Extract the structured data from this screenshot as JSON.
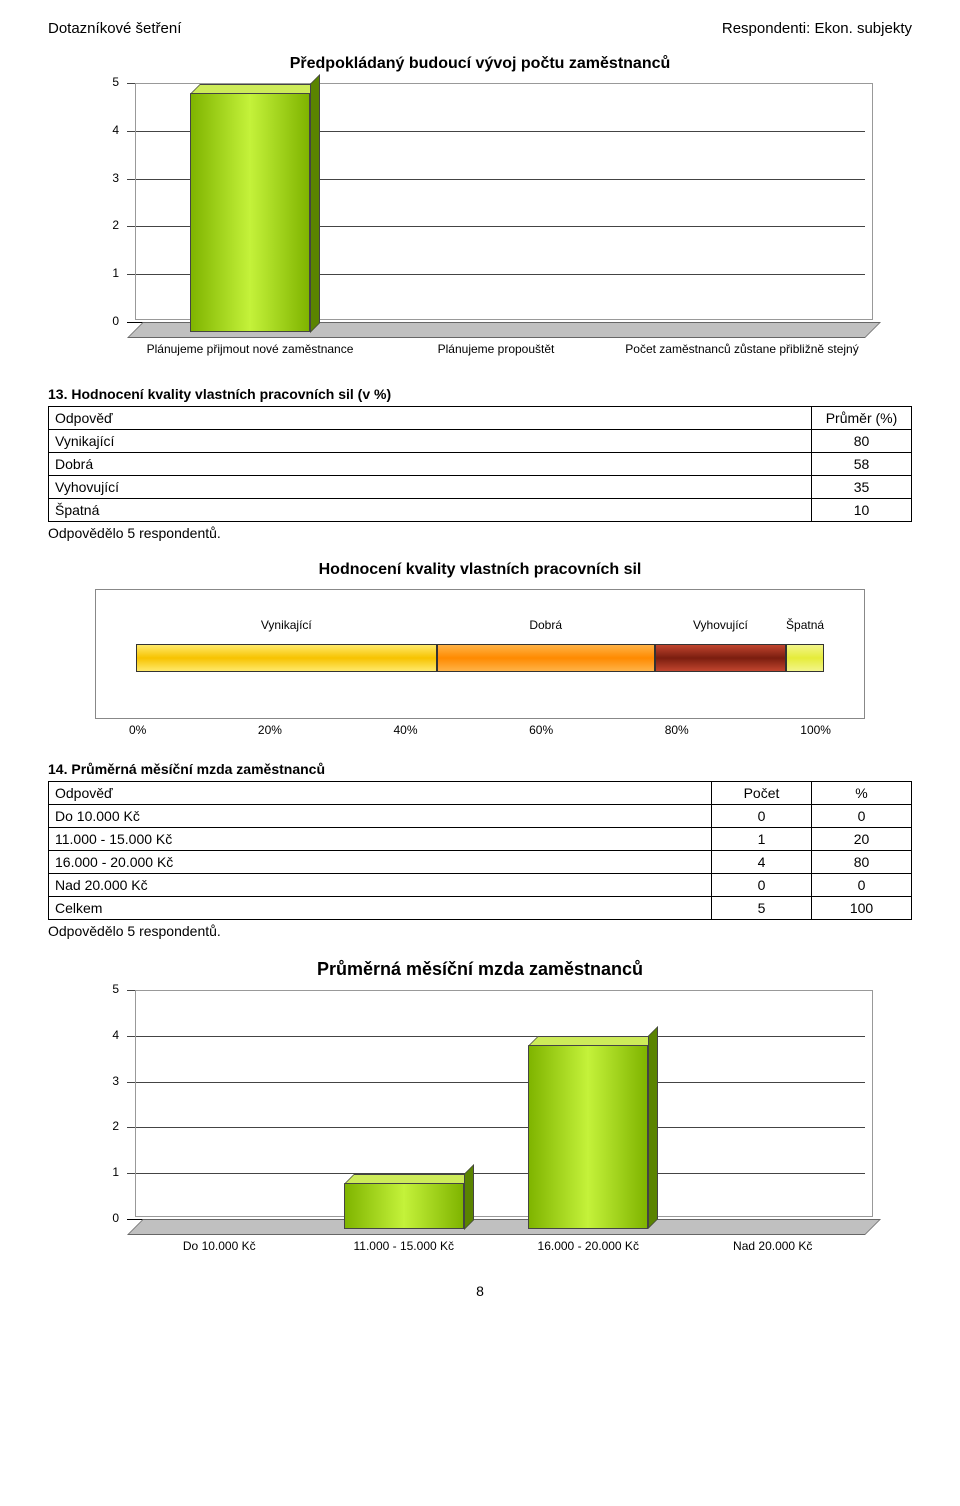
{
  "header": {
    "left": "Dotazníkové šetření",
    "right": "Respondenti: Ekon. subjekty"
  },
  "chart1": {
    "title": "Předpokládaný budoucí vývoj počtu zaměstnanců",
    "type": "bar",
    "ymax": 5,
    "ytick_step": 1,
    "categories": [
      "Plánujeme přijmout nové zaměstnance",
      "Plánujeme propouštět",
      "Počet zaměstnanců zůstane přibližně stejný"
    ],
    "values": [
      5,
      0,
      0
    ],
    "bar_fill": "linear-gradient(to right,#7fb400,#c4f23a,#7fb400)",
    "bar_top": "#cdeb5a",
    "bar_side": "#5a8400",
    "floor_color": "#c0c0c0",
    "text_color": "#000000"
  },
  "table1": {
    "title": "13. Hodnocení kvality vlastních pracovních sil (v %)",
    "col1": "Odpověď",
    "col2": "Průměr (%)",
    "rows": [
      {
        "label": "Vynikající",
        "val": "80"
      },
      {
        "label": "Dobrá",
        "val": "58"
      },
      {
        "label": "Vyhovující",
        "val": "35"
      },
      {
        "label": "Špatná",
        "val": "10"
      }
    ],
    "note": "Odpovědělo 5 respondentů."
  },
  "chart2": {
    "title": "Hodnocení kvality vlastních pracovních sil",
    "type": "stacked-bar-100",
    "segments": [
      {
        "label": "Vynikající",
        "pct": 43.7,
        "fill": "linear-gradient(to bottom,#ffe96a,#f7c300,#ffe96a)"
      },
      {
        "label": "Dobrá",
        "pct": 31.7,
        "fill": "linear-gradient(to bottom,#ffb347,#ff8a00,#ffb347)"
      },
      {
        "label": "Vyhovující",
        "pct": 19.1,
        "fill": "linear-gradient(to bottom,#c1452e,#7a1d0f,#c1452e)"
      },
      {
        "label": "Špatná",
        "pct": 5.5,
        "fill": "linear-gradient(to bottom,#f2f58a,#e6ec3a,#f2f58a)"
      }
    ],
    "xticks": [
      "0%",
      "20%",
      "40%",
      "60%",
      "80%",
      "100%"
    ]
  },
  "table2": {
    "title": "14. Průměrná měsíční mzda zaměstnanců",
    "col1": "Odpověď",
    "col2": "Počet",
    "col3": "%",
    "rows": [
      {
        "label": "Do 10.000 Kč",
        "v1": "0",
        "v2": "0"
      },
      {
        "label": "11.000 - 15.000 Kč",
        "v1": "1",
        "v2": "20"
      },
      {
        "label": "16.000 - 20.000 Kč",
        "v1": "4",
        "v2": "80"
      },
      {
        "label": "Nad 20.000 Kč",
        "v1": "0",
        "v2": "0"
      },
      {
        "label": "Celkem",
        "v1": "5",
        "v2": "100"
      }
    ],
    "note": "Odpovědělo 5 respondentů."
  },
  "chart3": {
    "title": "Průměrná měsíční mzda zaměstnanců",
    "type": "bar",
    "ymax": 5,
    "ytick_step": 1,
    "categories": [
      "Do 10.000 Kč",
      "11.000 - 15.000 Kč",
      "16.000 - 20.000 Kč",
      "Nad 20.000 Kč"
    ],
    "values": [
      0,
      1,
      4,
      0
    ],
    "bar_fill": "linear-gradient(to right,#7fb400,#c4f23a,#7fb400)",
    "bar_top": "#cdeb5a",
    "bar_side": "#5a8400"
  },
  "page_number": "8"
}
